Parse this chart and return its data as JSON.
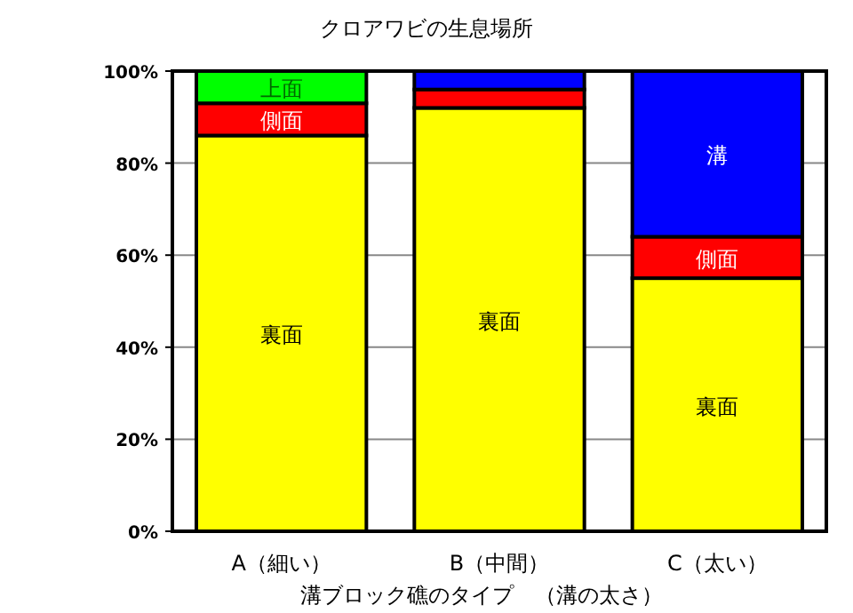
{
  "chart_data": {
    "type": "bar",
    "stacked": true,
    "title": "クロアワビの生息場所",
    "xlabel": "溝ブロック礁のタイプ　（溝の太さ）",
    "categories": [
      "A（細い）",
      "B（中間）",
      "C（太い）"
    ],
    "series": [
      {
        "name": "裏面",
        "color": "#ffff00",
        "values": [
          86,
          92,
          55
        ]
      },
      {
        "name": "側面",
        "color": "#ff0000",
        "values": [
          7,
          4,
          9
        ]
      },
      {
        "name": "上面",
        "color": "#00ff00",
        "values": [
          7,
          0,
          0
        ]
      },
      {
        "name": "溝",
        "color": "#0000ff",
        "values": [
          0,
          4,
          36
        ]
      }
    ],
    "ylim": [
      0,
      100
    ],
    "yticks": [
      {
        "value": 0,
        "label": "0%"
      },
      {
        "value": 20,
        "label": "20%"
      },
      {
        "value": 40,
        "label": "40%"
      },
      {
        "value": 60,
        "label": "60%"
      },
      {
        "value": 80,
        "label": "80%"
      },
      {
        "value": 100,
        "label": "100%"
      }
    ],
    "grid": "y"
  }
}
